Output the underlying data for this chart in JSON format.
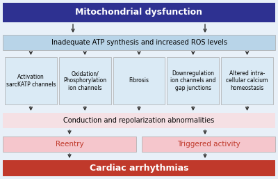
{
  "title": "Mitochondrial dysfunction",
  "title_bg": "#2e3191",
  "title_text_color": "#ffffff",
  "row2_text": "Inadequate ATP synthesis and increased ROS levels",
  "row2_bg": "#b8d4e8",
  "row2_text_color": "#000000",
  "boxes": [
    "Activation\nsarcKATP channels",
    "Oxidation/\nPhosphorylation\nion channels",
    "Fibrosis",
    "Downregulation\nion channels and\ngap junctions",
    "Altered intra-\ncellular calcium\nhomeostasis"
  ],
  "box_bg": "#daeaf5",
  "box_text_color": "#000000",
  "row4_text": "Conduction and repolarization abnormalities",
  "row4_bg": "#f5e0e4",
  "row4_text_color": "#000000",
  "reentry_text": "Reentry",
  "triggered_text": "Triggered activity",
  "reentry_bg": "#f5c6cc",
  "triggered_bg": "#f5c6cc",
  "reentry_text_color": "#c0392b",
  "triggered_text_color": "#c0392b",
  "bottom_text": "Cardiac arrhythmias",
  "bottom_bg": "#c0392b",
  "bottom_text_color": "#ffffff",
  "arrow_color": "#333333",
  "bg_color": "#f0f4f8",
  "border_color": "#aaaaaa",
  "stripe_bg": "#e8f0f8"
}
